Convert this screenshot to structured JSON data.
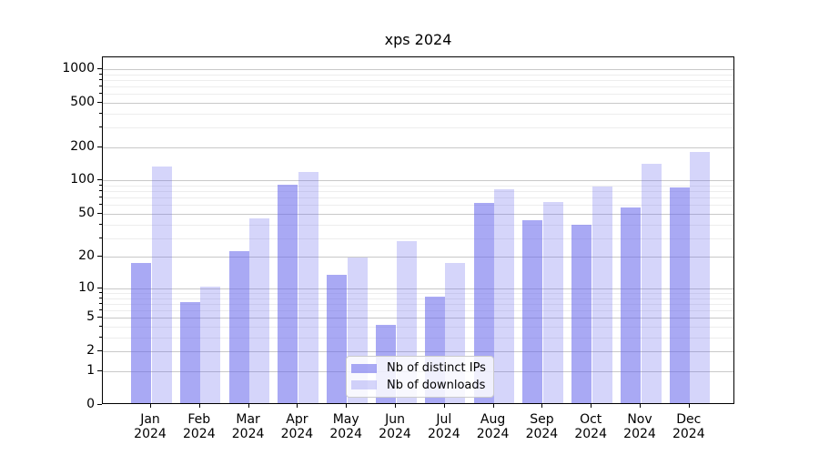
{
  "title": "xps 2024",
  "chart_data": {
    "type": "bar",
    "title": "xps 2024",
    "categories": [
      "Jan",
      "Feb",
      "Mar",
      "Apr",
      "May",
      "Jun",
      "Jul",
      "Aug",
      "Sep",
      "Oct",
      "Nov",
      "Dec"
    ],
    "category_year": "2024",
    "series": [
      {
        "name": "Nb of distinct IPs",
        "color": "rgba(98,98,235,0.55)",
        "values": [
          17,
          7,
          22,
          89,
          13,
          4,
          8,
          60,
          42,
          38,
          55,
          84
        ]
      },
      {
        "name": "Nb of downloads",
        "color": "rgba(98,98,235,0.27)",
        "values": [
          130,
          10,
          44,
          115,
          19,
          27,
          17,
          81,
          62,
          85,
          137,
          173
        ]
      }
    ],
    "y_axis": {
      "scale": "log1p",
      "ticks": [
        0,
        1,
        2,
        5,
        10,
        20,
        50,
        100,
        200,
        500,
        1000
      ],
      "minor_ticks": [
        3,
        4,
        6,
        7,
        8,
        9,
        30,
        40,
        60,
        70,
        80,
        90,
        300,
        400,
        600,
        700,
        800,
        900
      ],
      "ymin": 0,
      "ymax_log10_of_1plus": 3.106
    },
    "legend_position": "lower center",
    "grid": true
  },
  "colors": {
    "bar_distinct_ips": "rgba(98,98,235,0.55)",
    "bar_downloads": "rgba(98,98,235,0.27)",
    "gridline_major": "#c9c9c9",
    "gridline_minor": "#ededed",
    "axis": "#000000",
    "legend_border": "#cccccc"
  }
}
